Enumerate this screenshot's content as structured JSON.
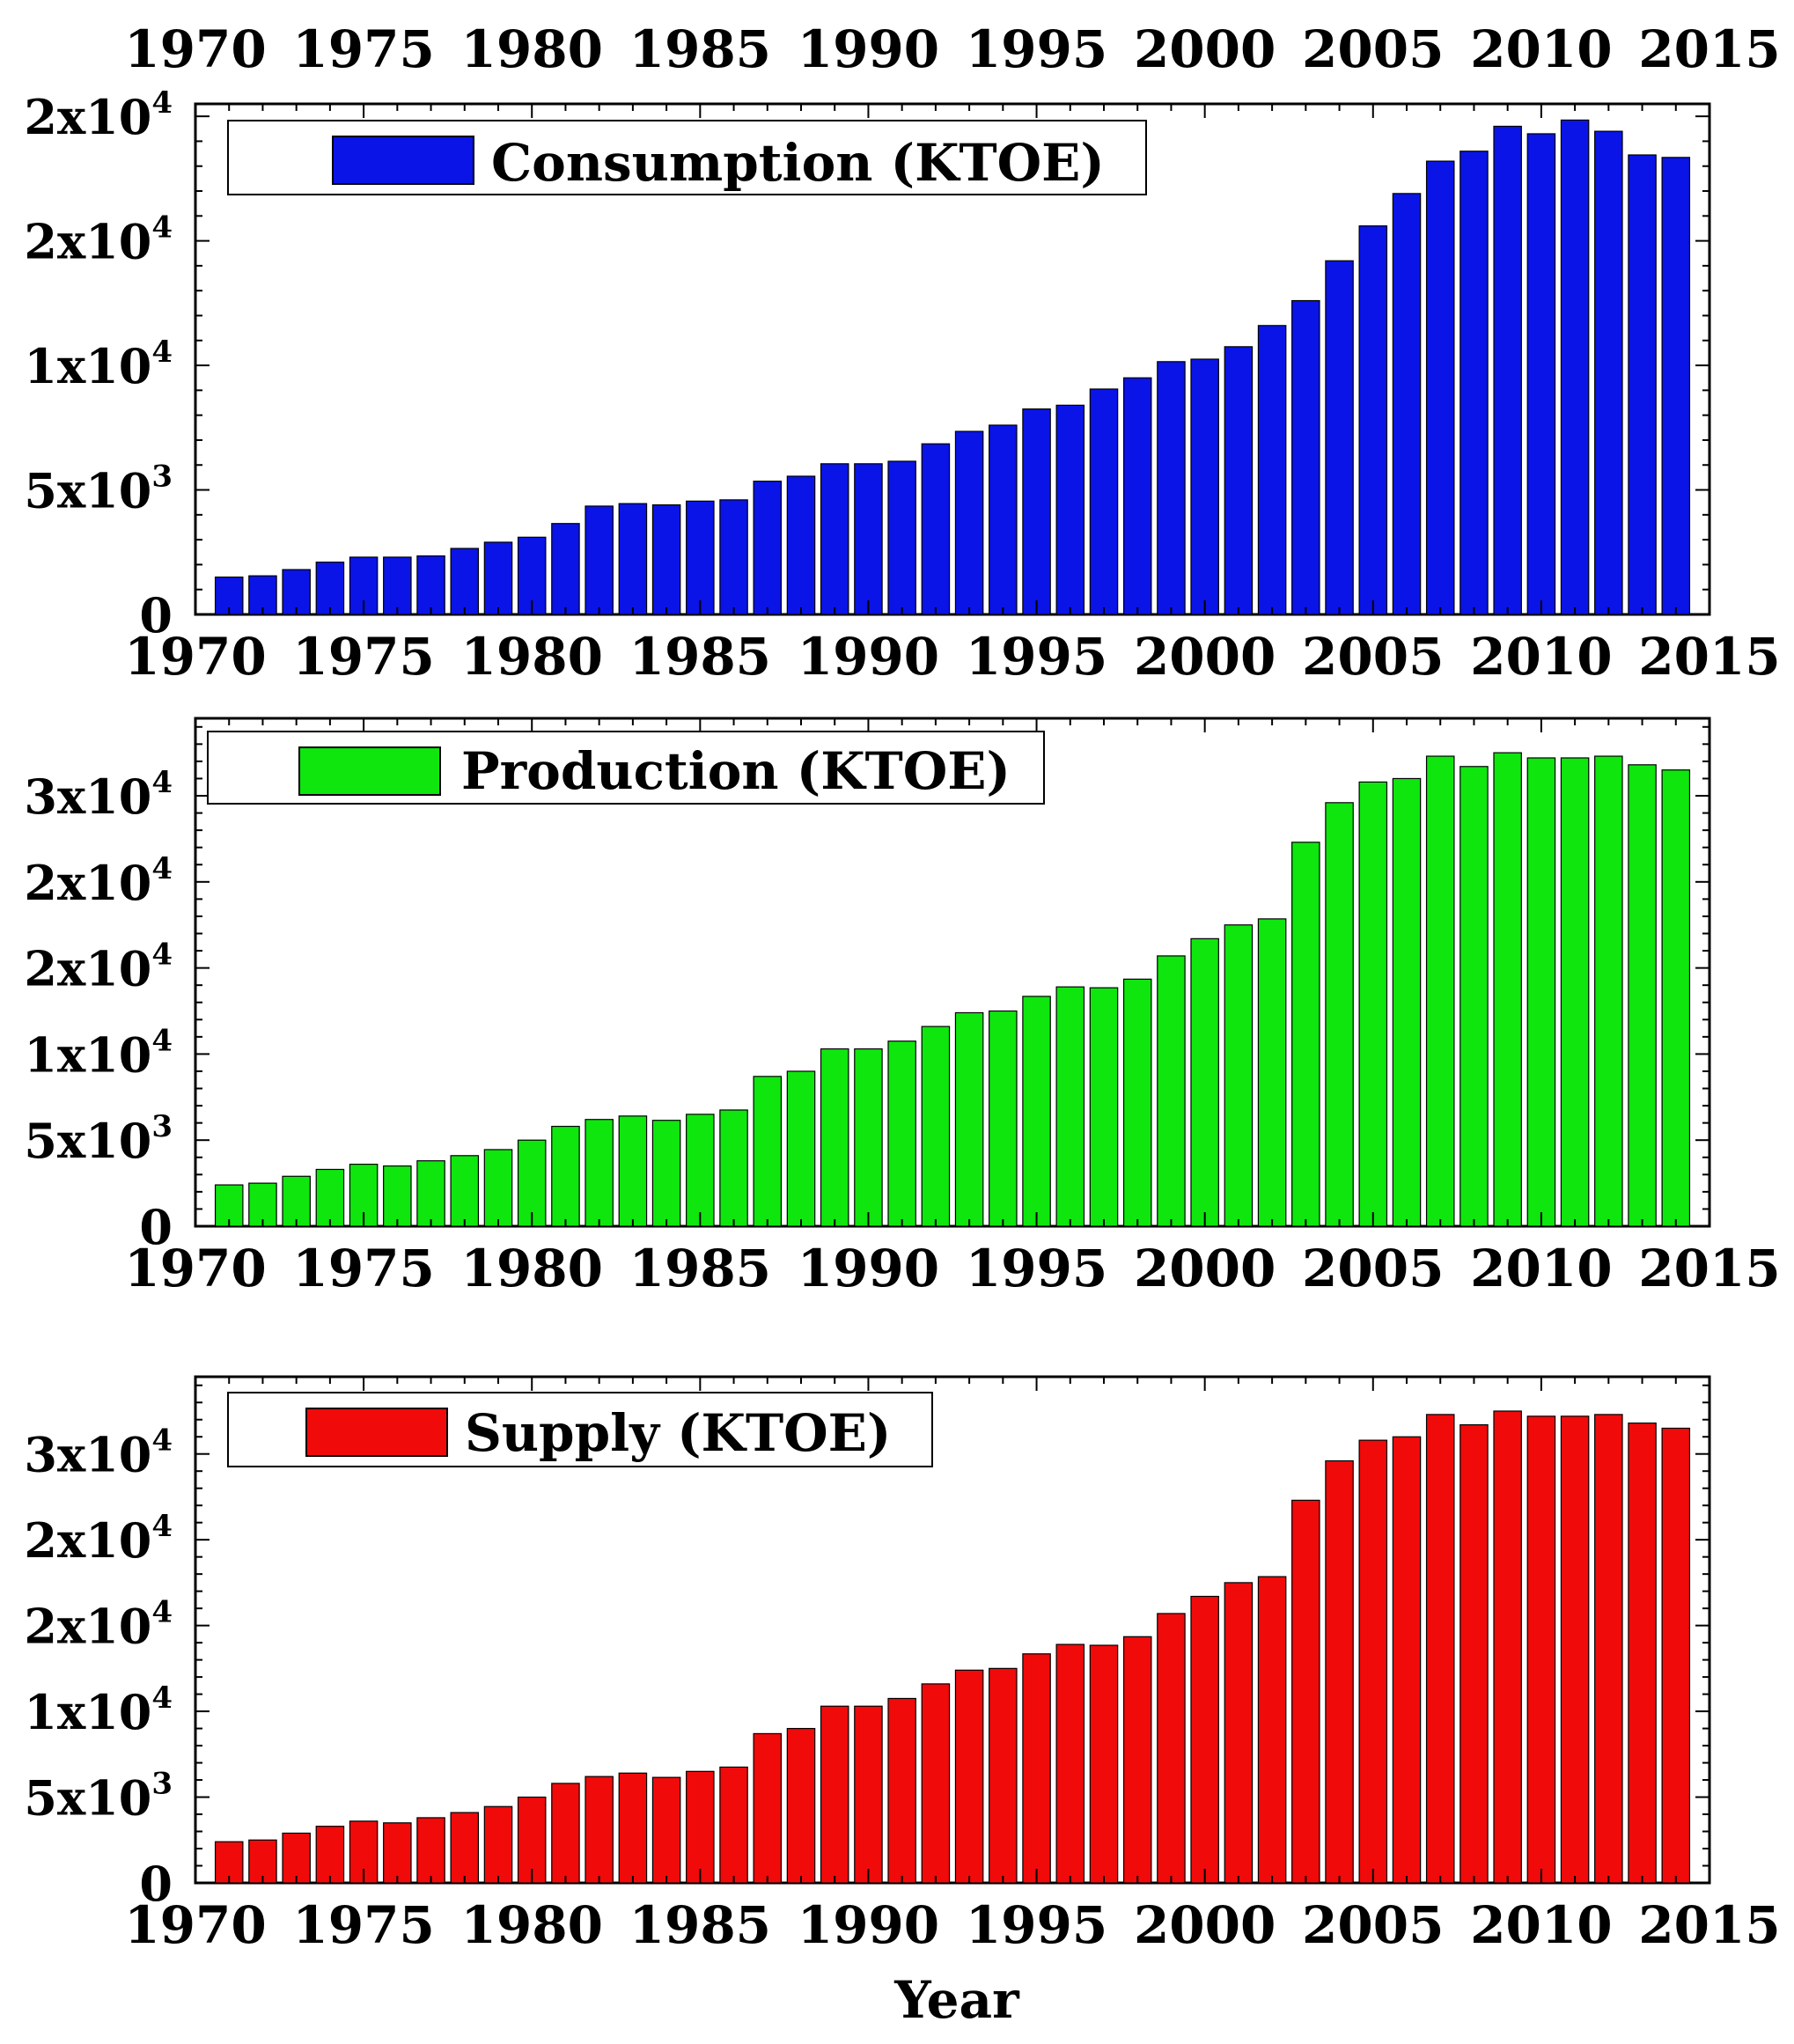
{
  "chart_data": [
    {
      "type": "bar",
      "title": "",
      "xlabel": "",
      "ylabel": "",
      "legend": "Consumption (KTOE)",
      "legend_position": "top-left",
      "color": "#0a14e6",
      "xlim": [
        1970,
        2015
      ],
      "ylim": [
        0,
        20000
      ],
      "x_ticks": [
        "1970",
        "1975",
        "1980",
        "1985",
        "1990",
        "1995",
        "2000",
        "2005",
        "2010",
        "2015"
      ],
      "top_x_ticks": [
        "1970",
        "1975",
        "1980",
        "1985",
        "1990",
        "1995",
        "2000",
        "2005",
        "2010",
        "2015"
      ],
      "y_ticks": [
        {
          "value": 0,
          "mantissa": "0",
          "exp": ""
        },
        {
          "value": 5000,
          "mantissa": "5x10",
          "exp": "3"
        },
        {
          "value": 10000,
          "mantissa": "1x10",
          "exp": "4"
        },
        {
          "value": 15000,
          "mantissa": "2x10",
          "exp": "4"
        },
        {
          "value": 20000,
          "mantissa": "2x10",
          "exp": "4"
        }
      ],
      "years": [
        1971,
        1972,
        1973,
        1974,
        1975,
        1976,
        1977,
        1978,
        1979,
        1980,
        1981,
        1982,
        1983,
        1984,
        1985,
        1986,
        1987,
        1988,
        1989,
        1990,
        1991,
        1992,
        1993,
        1994,
        1995,
        1996,
        1997,
        1998,
        1999,
        2000,
        2001,
        2002,
        2003,
        2004,
        2005,
        2006,
        2007,
        2008,
        2009,
        2010,
        2011,
        2012,
        2013,
        2014
      ],
      "values": [
        1500,
        1550,
        1800,
        2100,
        2300,
        2300,
        2350,
        2650,
        2900,
        3100,
        3650,
        4350,
        4450,
        4400,
        4550,
        4600,
        5350,
        5550,
        6050,
        6050,
        6150,
        6850,
        7350,
        7600,
        8250,
        8400,
        9050,
        9500,
        10150,
        10250,
        10750,
        11600,
        12600,
        14200,
        15600,
        16900,
        18200,
        18600,
        19600,
        19300,
        19850,
        19400,
        18450,
        18350
      ]
    },
    {
      "type": "bar",
      "title": "",
      "xlabel": "",
      "ylabel": "",
      "legend": "Production (KTOE)",
      "legend_position": "top-left",
      "color": "#0ee60e",
      "xlim": [
        1970,
        2015
      ],
      "ylim": [
        0,
        30000
      ],
      "x_ticks": [
        "1970",
        "1975",
        "1980",
        "1985",
        "1990",
        "1995",
        "2000",
        "2005",
        "2010",
        "2015"
      ],
      "y_ticks": [
        {
          "value": 0,
          "mantissa": "0",
          "exp": ""
        },
        {
          "value": 5000,
          "mantissa": "5x10",
          "exp": "3"
        },
        {
          "value": 10000,
          "mantissa": "1x10",
          "exp": "4"
        },
        {
          "value": 15000,
          "mantissa": "2x10",
          "exp": "4"
        },
        {
          "value": 20000,
          "mantissa": "2x10",
          "exp": "4"
        },
        {
          "value": 25000,
          "mantissa": "3x10",
          "exp": "4"
        }
      ],
      "years": [
        1971,
        1972,
        1973,
        1974,
        1975,
        1976,
        1977,
        1978,
        1979,
        1980,
        1981,
        1982,
        1983,
        1984,
        1985,
        1986,
        1987,
        1988,
        1989,
        1990,
        1991,
        1992,
        1993,
        1994,
        1995,
        1996,
        1997,
        1998,
        1999,
        2000,
        2001,
        2002,
        2003,
        2004,
        2005,
        2006,
        2007,
        2008,
        2009,
        2010,
        2011,
        2012,
        2013,
        2014
      ],
      "values": [
        2400,
        2500,
        2900,
        3300,
        3600,
        3500,
        3800,
        4100,
        4450,
        5000,
        5800,
        6200,
        6400,
        6150,
        6500,
        6750,
        8700,
        9000,
        10300,
        10300,
        10750,
        11600,
        12400,
        12500,
        13350,
        13900,
        13850,
        14350,
        15700,
        16700,
        17500,
        17850,
        22300,
        24600,
        25800,
        26000,
        27300,
        26700,
        27500,
        27200,
        27200,
        27300,
        26800,
        26500
      ]
    },
    {
      "type": "bar",
      "title": "",
      "xlabel": "Year",
      "ylabel": "",
      "legend": "Supply (KTOE)",
      "legend_position": "top-left",
      "color": "#f00a0a",
      "xlim": [
        1970,
        2015
      ],
      "ylim": [
        0,
        30000
      ],
      "x_ticks": [
        "1970",
        "1975",
        "1980",
        "1985",
        "1990",
        "1995",
        "2000",
        "2005",
        "2010",
        "2015"
      ],
      "y_ticks": [
        {
          "value": 0,
          "mantissa": "0",
          "exp": ""
        },
        {
          "value": 5000,
          "mantissa": "5x10",
          "exp": "3"
        },
        {
          "value": 10000,
          "mantissa": "1x10",
          "exp": "4"
        },
        {
          "value": 15000,
          "mantissa": "2x10",
          "exp": "4"
        },
        {
          "value": 20000,
          "mantissa": "2x10",
          "exp": "4"
        },
        {
          "value": 25000,
          "mantissa": "3x10",
          "exp": "4"
        }
      ],
      "years": [
        1971,
        1972,
        1973,
        1974,
        1975,
        1976,
        1977,
        1978,
        1979,
        1980,
        1981,
        1982,
        1983,
        1984,
        1985,
        1986,
        1987,
        1988,
        1989,
        1990,
        1991,
        1992,
        1993,
        1994,
        1995,
        1996,
        1997,
        1998,
        1999,
        2000,
        2001,
        2002,
        2003,
        2004,
        2005,
        2006,
        2007,
        2008,
        2009,
        2010,
        2011,
        2012,
        2013,
        2014
      ],
      "values": [
        2400,
        2500,
        2900,
        3300,
        3600,
        3500,
        3800,
        4100,
        4450,
        5000,
        5800,
        6200,
        6400,
        6150,
        6500,
        6750,
        8700,
        9000,
        10300,
        10300,
        10750,
        11600,
        12400,
        12500,
        13350,
        13900,
        13850,
        14350,
        15700,
        16700,
        17500,
        17850,
        22300,
        24600,
        25800,
        26000,
        27300,
        26700,
        27500,
        27200,
        27200,
        27300,
        26800,
        26500
      ]
    }
  ]
}
